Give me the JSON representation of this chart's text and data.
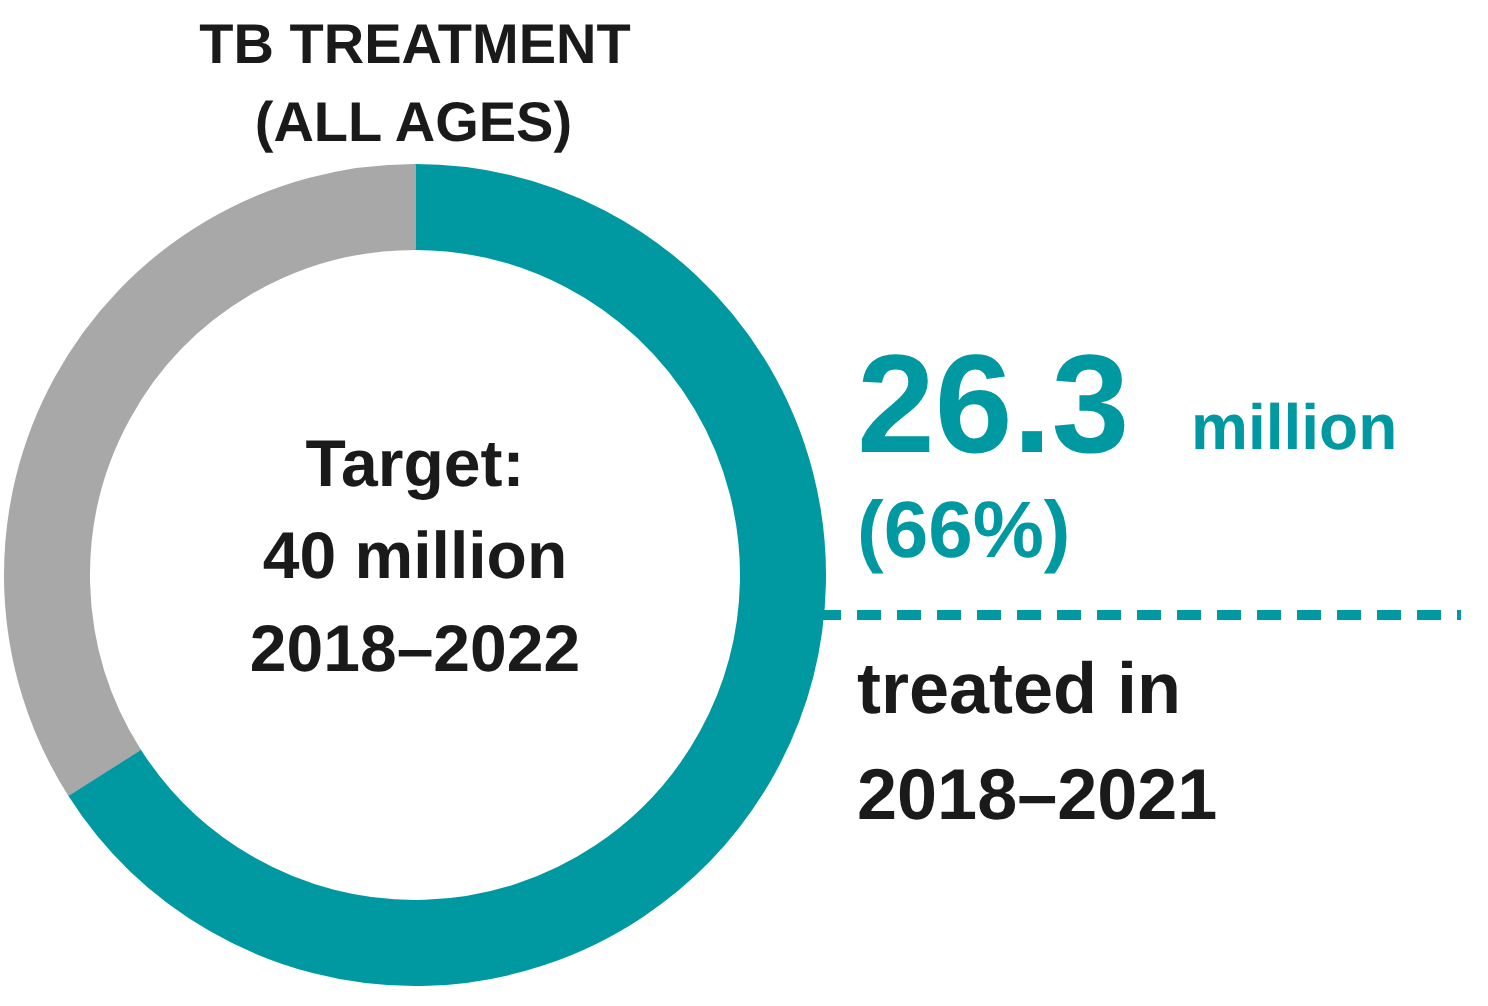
{
  "chart_data": {
    "type": "donut",
    "title": "TB TREATMENT\n(ALL AGES)",
    "categories": [
      null,
      null
    ],
    "values": [
      66,
      34
    ],
    "colors": [
      "#0098a1",
      "#a8a8a8"
    ],
    "annotations": [
      "Target:\n40 million\n2018–2022",
      "26.3",
      "million",
      "(66%)",
      "treated in\n2018–2021"
    ]
  }
}
